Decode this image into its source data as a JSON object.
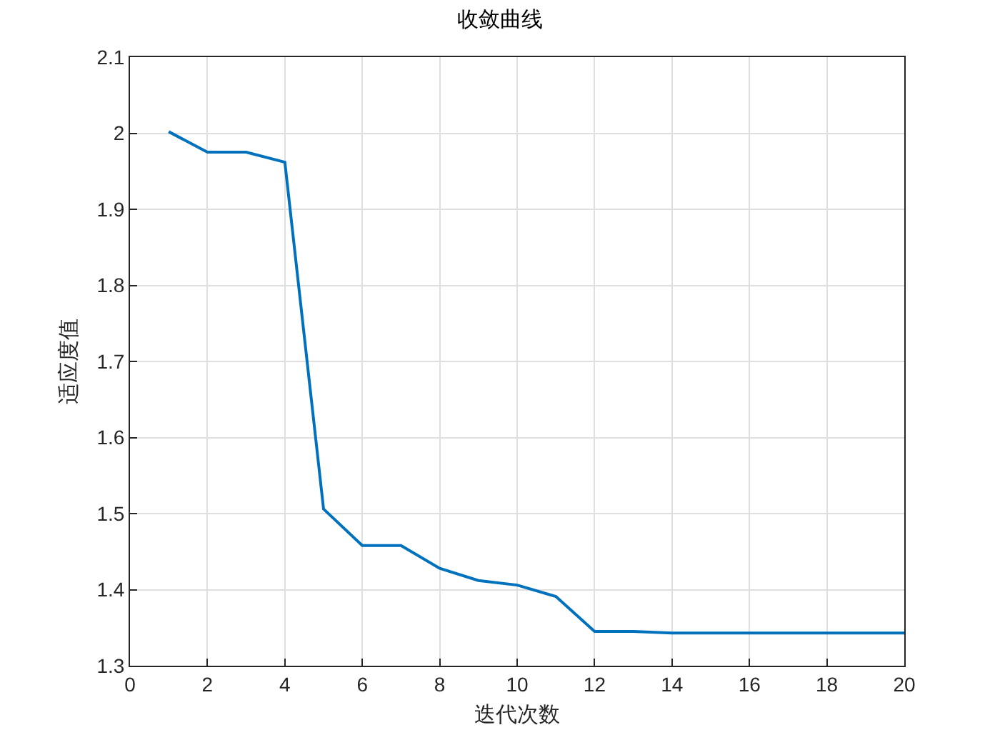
{
  "chart_data": {
    "type": "line",
    "title": "收敛曲线",
    "xlabel": "迭代次数",
    "ylabel": "适应度值",
    "x": [
      1,
      2,
      3,
      4,
      5,
      6,
      7,
      8,
      9,
      10,
      11,
      12,
      13,
      14,
      15,
      16,
      17,
      18,
      19,
      20
    ],
    "series": [
      {
        "color": "#0072bd",
        "values": [
          2.002,
          1.975,
          1.975,
          1.962,
          1.506,
          1.458,
          1.458,
          1.428,
          1.412,
          1.406,
          1.391,
          1.345,
          1.345,
          1.343,
          1.343,
          1.343,
          1.343,
          1.343,
          1.343,
          1.343
        ]
      }
    ],
    "xlim": [
      0,
      20
    ],
    "xticks": [
      0,
      2,
      4,
      6,
      8,
      10,
      12,
      14,
      16,
      18,
      20
    ],
    "ylim": [
      1.3,
      2.1
    ],
    "yticks": [
      1.3,
      1.4,
      1.5,
      1.6,
      1.7,
      1.8,
      1.9,
      2,
      2.1
    ],
    "grid": true,
    "line_style": "solid",
    "marker": "none"
  }
}
